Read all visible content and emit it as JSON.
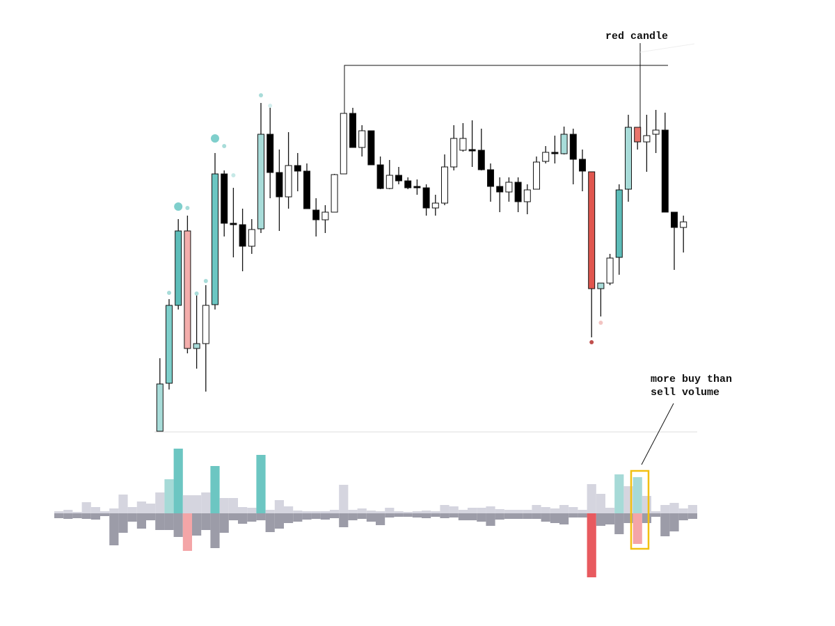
{
  "chart_data": {
    "type": "candlestick",
    "annotations": {
      "red_candle": "red candle",
      "volume_note": [
        "more buy than",
        "sell volume"
      ]
    },
    "ylim": [
      0,
      580
    ],
    "volume_lim": [
      -100,
      100
    ],
    "open": [
      null,
      null,
      null,
      null,
      null,
      null,
      null,
      null,
      null,
      null,
      null,
      0,
      69,
      181,
      288,
      119,
      126,
      182,
      370,
      299,
      297,
      266,
      291,
      427,
      372,
      337,
      382,
      374,
      318,
      304,
      315,
      370,
      457,
      408,
      432,
      383,
      349,
      368,
      360,
      352,
      350,
      321,
      328,
      380,
      404,
      405,
      404,
      376,
      352,
      344,
      358,
      330,
      348,
      388,
      401,
      399,
      427,
      391,
      373,
      205,
      213,
      250,
      348,
      437,
      416,
      427,
      433,
      315,
      293,
      null
    ],
    "high": [
      null,
      null,
      null,
      null,
      null,
      null,
      null,
      null,
      null,
      null,
      null,
      105,
      190,
      305,
      310,
      200,
      210,
      400,
      375,
      350,
      320,
      305,
      472,
      465,
      405,
      430,
      400,
      385,
      335,
      325,
      370,
      457,
      465,
      440,
      432,
      395,
      390,
      380,
      365,
      362,
      355,
      340,
      398,
      440,
      443,
      447,
      435,
      385,
      365,
      365,
      365,
      355,
      395,
      410,
      425,
      438,
      435,
      405,
      373,
      213,
      255,
      355,
      455,
      437,
      455,
      462,
      458,
      315,
      310,
      null
    ],
    "low": [
      null,
      null,
      null,
      null,
      null,
      null,
      null,
      null,
      null,
      null,
      null,
      0,
      60,
      175,
      112,
      90,
      57,
      175,
      280,
      250,
      230,
      255,
      285,
      335,
      288,
      320,
      345,
      320,
      280,
      285,
      315,
      370,
      408,
      395,
      383,
      348,
      348,
      355,
      348,
      340,
      310,
      310,
      325,
      375,
      402,
      380,
      375,
      330,
      315,
      330,
      315,
      312,
      348,
      385,
      385,
      398,
      355,
      345,
      135,
      165,
      210,
      225,
      330,
      405,
      373,
      400,
      315,
      232,
      257,
      null
    ],
    "close": [
      null,
      null,
      null,
      null,
      null,
      null,
      null,
      null,
      null,
      null,
      null,
      68,
      181,
      288,
      119,
      126,
      181,
      370,
      299,
      297,
      266,
      290,
      427,
      372,
      337,
      382,
      374,
      320,
      304,
      315,
      369,
      457,
      408,
      432,
      383,
      349,
      368,
      360,
      350,
      350,
      321,
      328,
      380,
      421,
      421,
      403,
      376,
      352,
      344,
      358,
      330,
      347,
      387,
      401,
      399,
      427,
      391,
      374,
      205,
      213,
      249,
      347,
      437,
      416,
      425,
      433,
      315,
      293,
      301,
      null
    ],
    "colors": [
      null,
      null,
      null,
      null,
      null,
      null,
      null,
      null,
      null,
      null,
      null,
      "#a8dcd9",
      "#7ecfcb",
      "#5dbdb9",
      "#f4aeac",
      "#a8dcd9",
      "#ffffff",
      "#6cc6c2",
      "#000000",
      "#000000",
      "#000000",
      "#ffffff",
      "#a8dcd9",
      "#000000",
      "#000000",
      "#ffffff",
      "#000000",
      "#000000",
      "#000000",
      "#ffffff",
      "#ffffff",
      "#ffffff",
      "#000000",
      "#ffffff",
      "#000000",
      "#000000",
      "#ffffff",
      "#000000",
      "#000000",
      "#000000",
      "#000000",
      "#ffffff",
      "#ffffff",
      "#ffffff",
      "#ffffff",
      "#000000",
      "#000000",
      "#000000",
      "#000000",
      "#ffffff",
      "#000000",
      "#ffffff",
      "#ffffff",
      "#ffffff",
      "#000000",
      "#a8dcd9",
      "#000000",
      "#000000",
      "#e0564e",
      "#a8dcd9",
      "#ffffff",
      "#5dbdb9",
      "#a8dcd9",
      "#e8756c",
      "#ffffff",
      "#ffffff",
      "#000000",
      "#000000",
      "#ffffff",
      null
    ],
    "buy_volume": [
      3,
      5,
      2,
      16,
      9,
      3,
      7,
      27,
      9,
      17,
      14,
      30,
      49,
      93,
      26,
      26,
      30,
      68,
      22,
      22,
      9,
      8,
      84,
      5,
      19,
      10,
      4,
      3,
      3,
      3,
      5,
      41,
      5,
      7,
      4,
      3,
      8,
      3,
      2,
      3,
      4,
      3,
      12,
      10,
      5,
      8,
      8,
      10,
      6,
      5,
      5,
      5,
      12,
      9,
      7,
      12,
      9,
      5,
      42,
      28,
      8,
      56,
      39,
      52,
      25,
      3,
      12,
      15,
      7,
      12
    ],
    "sell_volume": [
      7,
      8,
      7,
      8,
      9,
      4,
      46,
      28,
      12,
      22,
      10,
      24,
      24,
      34,
      54,
      32,
      24,
      50,
      28,
      10,
      15,
      12,
      10,
      27,
      22,
      14,
      12,
      9,
      8,
      9,
      7,
      20,
      10,
      8,
      12,
      17,
      6,
      5,
      5,
      6,
      7,
      5,
      7,
      6,
      10,
      10,
      12,
      18,
      9,
      8,
      8,
      8,
      8,
      12,
      14,
      16,
      6,
      6,
      92,
      18,
      16,
      30,
      14,
      44,
      14,
      5,
      33,
      26,
      10,
      8
    ],
    "buy_colors": [
      "#d5d5df",
      "#d5d5df",
      "#d5d5df",
      "#d5d5df",
      "#d5d5df",
      "#d5d5df",
      "#d5d5df",
      "#d5d5df",
      "#d5d5df",
      "#d5d5df",
      "#d5d5df",
      "#d5d5df",
      "#a6dad7",
      "#6cc6c2",
      "#d5d5df",
      "#d5d5df",
      "#d5d5df",
      "#6cc6c2",
      "#d5d5df",
      "#d5d5df",
      "#d5d5df",
      "#d5d5df",
      "#6cc6c2",
      "#d5d5df",
      "#d5d5df",
      "#d5d5df",
      "#d5d5df",
      "#d5d5df",
      "#d5d5df",
      "#d5d5df",
      "#d5d5df",
      "#d5d5df",
      "#d5d5df",
      "#d5d5df",
      "#d5d5df",
      "#d5d5df",
      "#d5d5df",
      "#d5d5df",
      "#d5d5df",
      "#d5d5df",
      "#d5d5df",
      "#d5d5df",
      "#d5d5df",
      "#d5d5df",
      "#d5d5df",
      "#d5d5df",
      "#d5d5df",
      "#d5d5df",
      "#d5d5df",
      "#d5d5df",
      "#d5d5df",
      "#d5d5df",
      "#d5d5df",
      "#d5d5df",
      "#d5d5df",
      "#d5d5df",
      "#d5d5df",
      "#d5d5df",
      "#d5d5df",
      "#d5d5df",
      "#d5d5df",
      "#a6dad7",
      "#d5d5df",
      "#a6dad7",
      "#d5d5df",
      "#d5d5df",
      "#d5d5df",
      "#d5d5df",
      "#d5d5df",
      "#d5d5df"
    ],
    "sell_colors": [
      "#9c9ca8",
      "#9c9ca8",
      "#9c9ca8",
      "#9c9ca8",
      "#9c9ca8",
      "#9c9ca8",
      "#9c9ca8",
      "#9c9ca8",
      "#9c9ca8",
      "#9c9ca8",
      "#9c9ca8",
      "#9c9ca8",
      "#9c9ca8",
      "#9c9ca8",
      "#f4a5a7",
      "#9c9ca8",
      "#9c9ca8",
      "#9c9ca8",
      "#9c9ca8",
      "#9c9ca8",
      "#9c9ca8",
      "#9c9ca8",
      "#9c9ca8",
      "#9c9ca8",
      "#9c9ca8",
      "#9c9ca8",
      "#9c9ca8",
      "#9c9ca8",
      "#9c9ca8",
      "#9c9ca8",
      "#9c9ca8",
      "#9c9ca8",
      "#9c9ca8",
      "#9c9ca8",
      "#9c9ca8",
      "#9c9ca8",
      "#9c9ca8",
      "#9c9ca8",
      "#9c9ca8",
      "#9c9ca8",
      "#9c9ca8",
      "#9c9ca8",
      "#9c9ca8",
      "#9c9ca8",
      "#9c9ca8",
      "#9c9ca8",
      "#9c9ca8",
      "#9c9ca8",
      "#9c9ca8",
      "#9c9ca8",
      "#9c9ca8",
      "#9c9ca8",
      "#9c9ca8",
      "#9c9ca8",
      "#9c9ca8",
      "#9c9ca8",
      "#9c9ca8",
      "#9c9ca8",
      "#e85a5f",
      "#9c9ca8",
      "#9c9ca8",
      "#9c9ca8",
      "#9c9ca8",
      "#f4a5a7",
      "#9c9ca8",
      "#9c9ca8",
      "#9c9ca8",
      "#9c9ca8",
      "#9c9ca8",
      "#9c9ca8"
    ],
    "markers": [
      {
        "index": 12,
        "value": 199,
        "size": 3,
        "color": "#a8dcd9"
      },
      {
        "index": 13,
        "value": 323,
        "size": 6,
        "color": "#7fcfcc"
      },
      {
        "index": 14,
        "value": 321,
        "size": 3,
        "color": "#a8dcd9"
      },
      {
        "index": 15,
        "value": 198,
        "size": 3,
        "color": "#a8dcd9"
      },
      {
        "index": 16,
        "value": 216,
        "size": 3,
        "color": "#a8dcd9"
      },
      {
        "index": 17,
        "value": 421,
        "size": 6,
        "color": "#7fcfcc"
      },
      {
        "index": 18,
        "value": 410,
        "size": 3,
        "color": "#a8dcd9"
      },
      {
        "index": 19,
        "value": 368,
        "size": 3,
        "color": "#c6e9e7"
      },
      {
        "index": 22,
        "value": 483,
        "size": 3,
        "color": "#a8dcd9"
      },
      {
        "index": 23,
        "value": 468,
        "size": 3,
        "color": "#d4eeed"
      },
      {
        "index": 58,
        "value": 128,
        "size": 3,
        "color": "#c0504d"
      },
      {
        "index": 59,
        "value": 156,
        "size": 3,
        "color": "#f2c4c2"
      }
    ]
  }
}
